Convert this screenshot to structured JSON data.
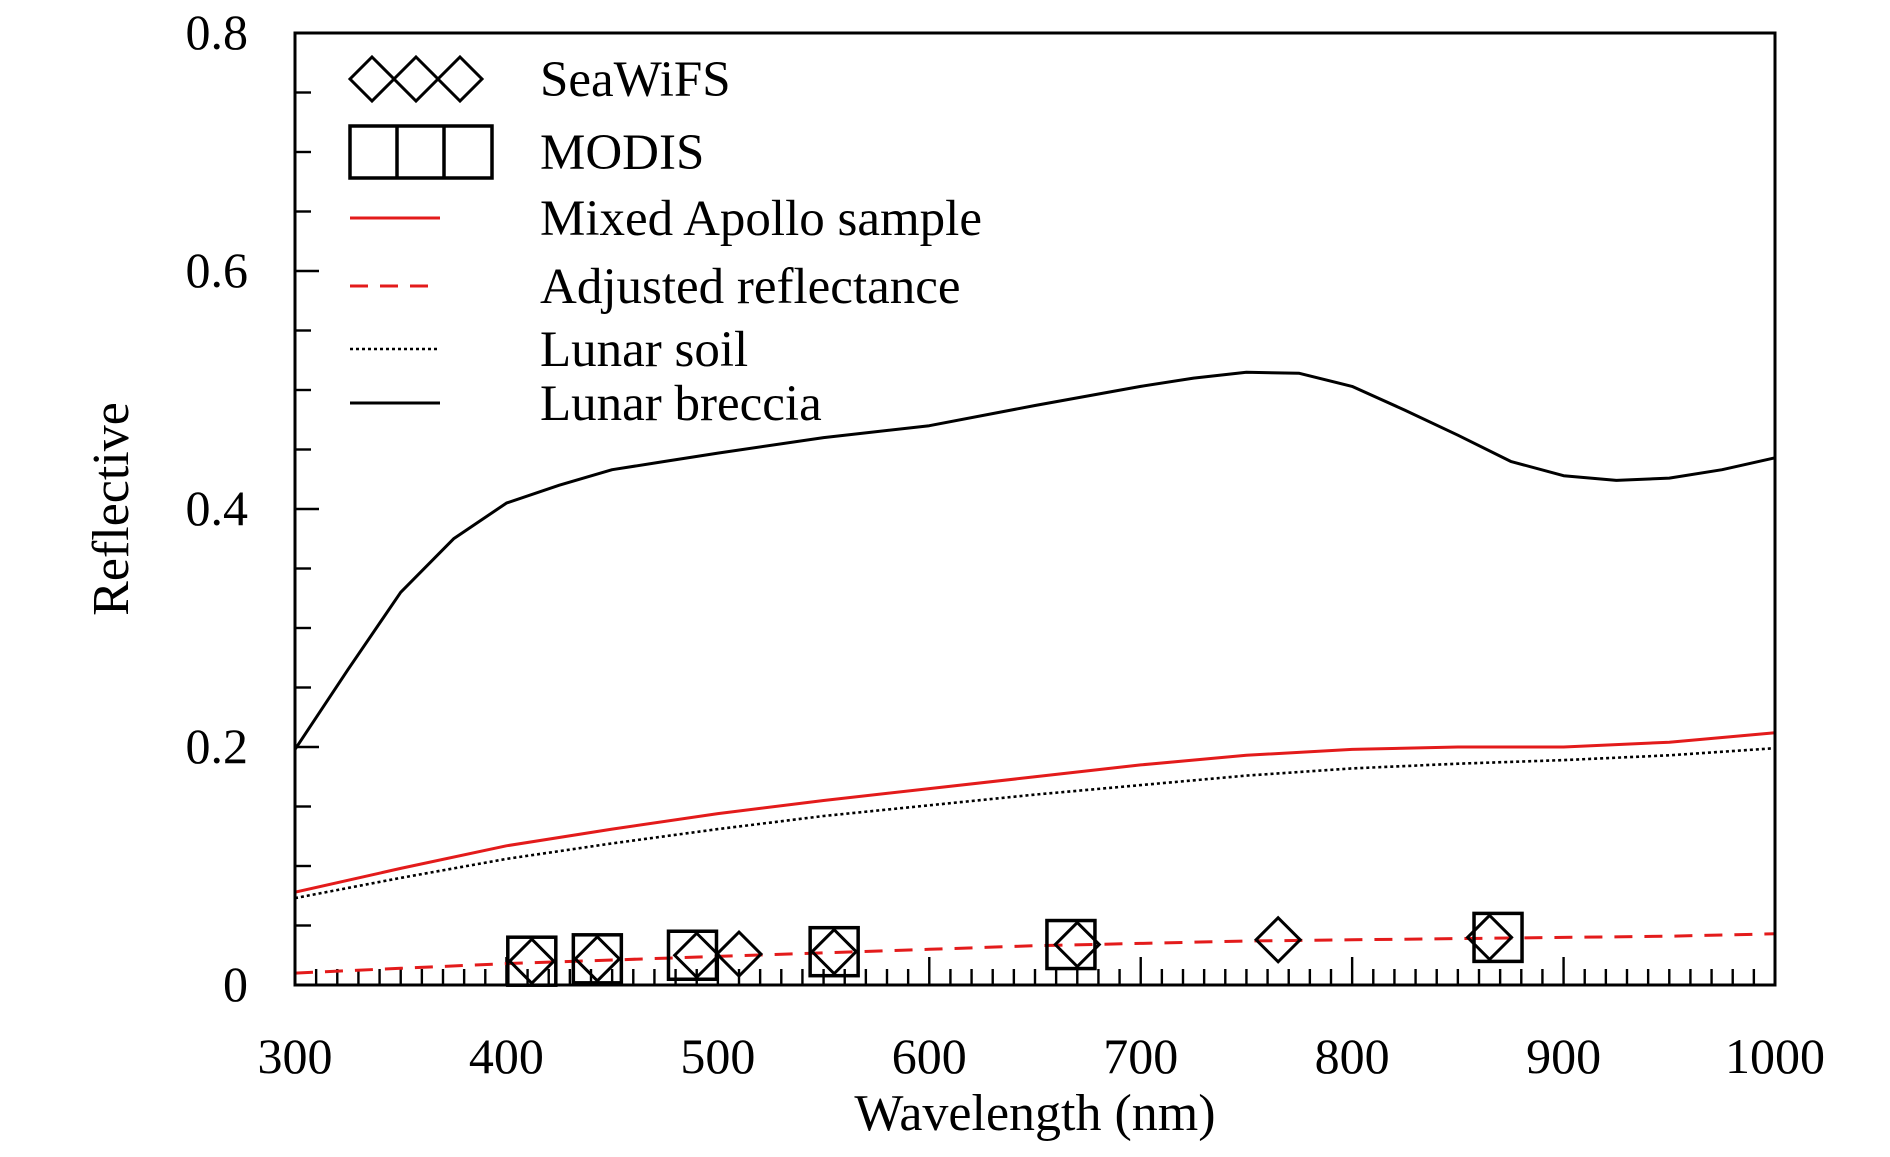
{
  "chart_data": {
    "type": "line",
    "title": "",
    "xlabel": "Wavelength (nm)",
    "ylabel": "Reflective",
    "xlim": [
      300,
      1000
    ],
    "ylim": [
      0,
      0.8
    ],
    "x_ticks": [
      300,
      400,
      500,
      600,
      700,
      800,
      900,
      1000
    ],
    "x_tick_labels": [
      "300",
      "400",
      "500",
      "600",
      "700",
      "800",
      "900",
      "1000"
    ],
    "y_ticks": [
      0,
      0.2,
      0.4,
      0.6,
      0.8
    ],
    "y_tick_labels": [
      "0",
      "0.2",
      "0.4",
      "0.6",
      "0.8"
    ],
    "grid": false,
    "legend_position": "top-left",
    "series": [
      {
        "name": "SeaWiFS",
        "kind": "marker",
        "marker": "diamond",
        "color": "#000000",
        "x": [
          412,
          443,
          490,
          510,
          555,
          670,
          765,
          865
        ],
        "y": [
          0.02,
          0.022,
          0.025,
          0.026,
          0.028,
          0.034,
          0.038,
          0.04
        ]
      },
      {
        "name": "MODIS",
        "kind": "marker",
        "marker": "square",
        "color": "#000000",
        "x": [
          412,
          443,
          488,
          555,
          667,
          869
        ],
        "y": [
          0.02,
          0.022,
          0.025,
          0.028,
          0.034,
          0.04
        ]
      },
      {
        "name": "Mixed Apollo sample",
        "kind": "line",
        "style": "solid",
        "color": "#e31b1b",
        "x": [
          300,
          350,
          400,
          450,
          500,
          550,
          600,
          650,
          700,
          750,
          800,
          850,
          900,
          950,
          1000
        ],
        "y": [
          0.078,
          0.098,
          0.117,
          0.131,
          0.144,
          0.155,
          0.165,
          0.175,
          0.185,
          0.193,
          0.198,
          0.2,
          0.2,
          0.204,
          0.212
        ]
      },
      {
        "name": "Adjusted reflectance",
        "kind": "line",
        "style": "dashed",
        "color": "#e31b1b",
        "x": [
          300,
          350,
          400,
          450,
          500,
          550,
          600,
          650,
          700,
          750,
          800,
          850,
          900,
          950,
          1000
        ],
        "y": [
          0.01,
          0.014,
          0.018,
          0.021,
          0.024,
          0.027,
          0.03,
          0.033,
          0.035,
          0.037,
          0.038,
          0.039,
          0.04,
          0.041,
          0.043
        ]
      },
      {
        "name": "Lunar soil",
        "kind": "line",
        "style": "dotted",
        "color": "#000000",
        "x": [
          300,
          350,
          400,
          450,
          500,
          550,
          600,
          650,
          700,
          750,
          800,
          850,
          900,
          950,
          1000
        ],
        "y": [
          0.073,
          0.09,
          0.106,
          0.119,
          0.131,
          0.142,
          0.151,
          0.16,
          0.168,
          0.176,
          0.182,
          0.186,
          0.189,
          0.193,
          0.199
        ]
      },
      {
        "name": "Lunar breccia",
        "kind": "line",
        "style": "solid",
        "color": "#000000",
        "x": [
          300,
          325,
          350,
          375,
          400,
          425,
          450,
          475,
          500,
          550,
          600,
          650,
          700,
          725,
          750,
          775,
          800,
          825,
          850,
          875,
          900,
          925,
          950,
          975,
          1000
        ],
        "y": [
          0.198,
          0.265,
          0.33,
          0.375,
          0.405,
          0.42,
          0.433,
          0.44,
          0.447,
          0.46,
          0.47,
          0.487,
          0.503,
          0.51,
          0.515,
          0.514,
          0.503,
          0.483,
          0.462,
          0.44,
          0.428,
          0.424,
          0.426,
          0.433,
          0.443
        ]
      }
    ]
  }
}
